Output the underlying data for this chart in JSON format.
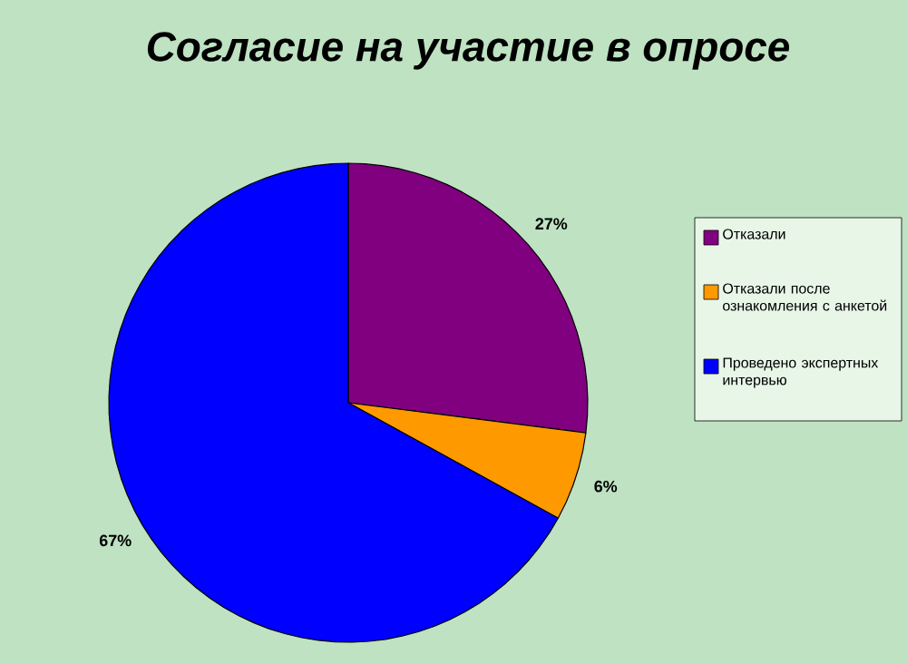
{
  "chart_data": {
    "type": "pie",
    "title": "Согласие на участие в опросе",
    "categories": [
      "Отказали",
      "Отказали после ознакомления с анкетой",
      "Проведено экспертных интервью"
    ],
    "values": [
      27,
      6,
      67
    ],
    "value_labels": [
      "27%",
      "6%",
      "67%"
    ],
    "colors": [
      "#800080",
      "#ff9900",
      "#0000ff"
    ],
    "legend": "right"
  }
}
